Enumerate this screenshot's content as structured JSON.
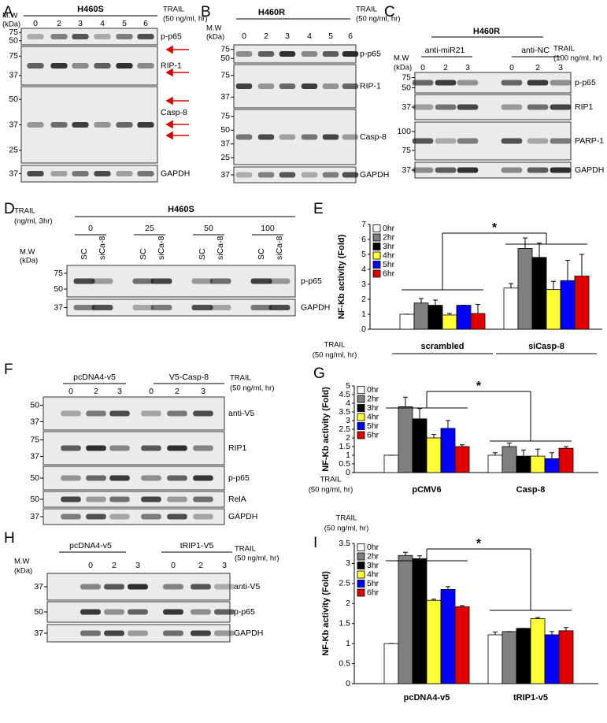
{
  "blots": [
    {
      "panel": "A",
      "title": "H460S",
      "treatment": [
        "TRAIL",
        "(50 ng/ml, hr)"
      ],
      "mw_header": [
        "M.W",
        "(kDa)"
      ],
      "lanes": [
        "0",
        "2",
        "3",
        "4",
        "5",
        "6"
      ],
      "rows": [
        {
          "label": "p-p65",
          "markers": [
            "75",
            "50"
          ]
        },
        {
          "label": "RIP-1",
          "markers": [
            "75",
            "37"
          ]
        },
        {
          "label": "Casp-8",
          "markers": [
            "50",
            "37",
            "25"
          ]
        },
        {
          "label": "GAPDH",
          "markers": [
            "37"
          ]
        }
      ]
    },
    {
      "panel": "B",
      "title": "H460R",
      "treatment": [
        "TRAIL",
        "(50 ng/ml, hr)"
      ],
      "mw_header": [
        "M.W",
        "(kDa)"
      ],
      "lanes": [
        "0",
        "2",
        "3",
        "4",
        "5",
        "6"
      ],
      "rows": [
        {
          "label": "p-p65",
          "markers": [
            "75",
            "50"
          ]
        },
        {
          "label": "RIP-1",
          "markers": [
            "75",
            "37"
          ]
        },
        {
          "label": "Casp-8",
          "markers": [
            "75",
            "50",
            "37",
            "25"
          ]
        },
        {
          "label": "GAPDH",
          "markers": [
            "37"
          ]
        }
      ]
    },
    {
      "panel": "C",
      "title": "H460R",
      "groups": [
        "anti-miR21",
        "anti-NC"
      ],
      "treatment": [
        "TRAIL",
        "(100 ng/ml, hr)"
      ],
      "mw_header": [
        "M.W",
        "(kDa)"
      ],
      "lanes": [
        "0",
        "2",
        "3",
        "0",
        "2",
        "3"
      ],
      "rows": [
        {
          "label": "p-p65",
          "markers": [
            "75",
            "50"
          ]
        },
        {
          "label": "RIP1",
          "markers": [
            "37"
          ]
        },
        {
          "label": "PARP-1",
          "markers": [
            "100",
            "75"
          ]
        },
        {
          "label": "GAPDH",
          "markers": [
            "37"
          ]
        }
      ]
    },
    {
      "panel": "D",
      "title": "H460S",
      "groups": [
        "0",
        "25",
        "50",
        "100"
      ],
      "treatment": [
        "TRAIL",
        "(ng/ml, 3hr)"
      ],
      "mw_header": [
        "M.W",
        "(kDa)"
      ],
      "lanes": [
        "SC",
        "siCa-8",
        "SC",
        "siCa-8",
        "SC",
        "siCa-8",
        "SC",
        "siCa-8"
      ],
      "rows": [
        {
          "label": "p-p65",
          "markers": [
            "75",
            "50"
          ]
        },
        {
          "label": "GAPDH",
          "markers": [
            "37"
          ]
        }
      ]
    },
    {
      "panel": "F",
      "groups": [
        "pcDNA4-v5",
        "V5-Casp-8"
      ],
      "treatment": [
        "TRAIL",
        "(50 ng/ml, hr)"
      ],
      "lanes": [
        "0",
        "2",
        "3",
        "0",
        "2",
        "3"
      ],
      "rows": [
        {
          "label": "anti-V5",
          "markers": [
            "50",
            "37"
          ]
        },
        {
          "label": "RIP1",
          "markers": [
            "75",
            "37"
          ]
        },
        {
          "label": "p-p65",
          "markers": [
            "50"
          ]
        },
        {
          "label": "RelA",
          "markers": [
            "50"
          ]
        },
        {
          "label": "GAPDH",
          "markers": [
            "37"
          ]
        }
      ]
    },
    {
      "panel": "H",
      "groups": [
        "pcDNA4-v5",
        "tRIP1-V5"
      ],
      "treatment": [
        "TRAIL",
        "(50 ng/ml, hr)"
      ],
      "mw_header": [
        "M.W",
        "(kDa)"
      ],
      "lanes": [
        "0",
        "2",
        "3",
        "0",
        "2",
        "3"
      ],
      "rows": [
        {
          "label": "anti-V5",
          "markers": [
            "37"
          ]
        },
        {
          "label": "p-p65",
          "markers": [
            "50"
          ]
        },
        {
          "label": "GAPDH",
          "markers": [
            "37"
          ]
        }
      ]
    }
  ],
  "extra_label": [
    "TRAIL",
    "(50 ng/ml, hr)"
  ],
  "chart_data": [
    {
      "type": "bar",
      "panel": "E",
      "ylabel": "NF-Kb activity (Fold)",
      "xlabel": [
        "TRAIL",
        "(50 ng/ml, hr)"
      ],
      "annotation": "*",
      "legend": "upper left",
      "categories": [
        "scrambled",
        "siCasp-8"
      ],
      "ylim": [
        0,
        7
      ],
      "yticks": [
        0,
        1,
        2,
        3,
        4,
        5,
        6,
        7
      ],
      "series": [
        {
          "name": "0hr",
          "color": "#ffffff",
          "values": [
            1,
            2.75
          ],
          "errors": [
            0,
            0.3
          ]
        },
        {
          "name": "2hr",
          "color": "#808080",
          "values": [
            1.75,
            5.4
          ],
          "errors": [
            0.3,
            0.7
          ]
        },
        {
          "name": "3hr",
          "color": "#000000",
          "values": [
            1.6,
            4.8
          ],
          "errors": [
            0.35,
            0.95
          ]
        },
        {
          "name": "4hr",
          "color": "#ffff33",
          "values": [
            0.95,
            2.65
          ],
          "errors": [
            0.1,
            0.55
          ]
        },
        {
          "name": "5hr",
          "color": "#0000ff",
          "values": [
            1.6,
            3.25
          ],
          "errors": [
            0,
            1.35
          ]
        },
        {
          "name": "6hr",
          "color": "#e00000",
          "values": [
            1.05,
            3.55
          ],
          "errors": [
            0.6,
            1.45
          ]
        }
      ]
    },
    {
      "type": "bar",
      "panel": "G",
      "ylabel": "NF-Kb activity (Fold)",
      "xlabel": [
        "TRAIL",
        "(50 ng/ml, hr)"
      ],
      "annotation": "*",
      "legend": "upper left",
      "categories": [
        "pCMV6",
        "Casp-8"
      ],
      "ylim": [
        0,
        5
      ],
      "yticks": [
        0,
        0.5,
        1,
        1.5,
        2,
        2.5,
        3,
        3.5,
        4,
        4.5,
        5
      ],
      "series": [
        {
          "name": "0hr",
          "color": "#ffffff",
          "values": [
            1,
            1
          ],
          "errors": [
            0,
            0.15
          ]
        },
        {
          "name": "2hr",
          "color": "#808080",
          "values": [
            3.8,
            1.5
          ],
          "errors": [
            0.55,
            0.2
          ]
        },
        {
          "name": "3hr",
          "color": "#000000",
          "values": [
            3.1,
            0.95
          ],
          "errors": [
            0.6,
            0.35
          ]
        },
        {
          "name": "4hr",
          "color": "#ffff33",
          "values": [
            2,
            0.95
          ],
          "errors": [
            0.2,
            0.4
          ]
        },
        {
          "name": "5hr",
          "color": "#0000ff",
          "values": [
            2.55,
            0.8
          ],
          "errors": [
            0.45,
            0.35
          ]
        },
        {
          "name": "6hr",
          "color": "#e00000",
          "values": [
            1.5,
            1.4
          ],
          "errors": [
            0.1,
            0.1
          ]
        }
      ]
    },
    {
      "type": "bar",
      "panel": "I",
      "ylabel": "NF-Kb activity (Fold)",
      "annotation": "*",
      "legend": "upper left",
      "categories": [
        "pcDNA4-v5",
        "tRIP1-v5"
      ],
      "ylim": [
        0,
        3.5
      ],
      "yticks": [
        0,
        0.5,
        1,
        1.5,
        2,
        2.5,
        3,
        3.5
      ],
      "series": [
        {
          "name": "0hr",
          "color": "#ffffff",
          "values": [
            1,
            1.22
          ],
          "errors": [
            0,
            0.07
          ]
        },
        {
          "name": "2hr",
          "color": "#808080",
          "values": [
            3.2,
            1.3
          ],
          "errors": [
            0.08,
            0
          ]
        },
        {
          "name": "3hr",
          "color": "#000000",
          "values": [
            3.12,
            1.38
          ],
          "errors": [
            0.07,
            0
          ]
        },
        {
          "name": "4hr",
          "color": "#ffff33",
          "values": [
            2.08,
            1.62
          ],
          "errors": [
            0.03,
            0.03
          ]
        },
        {
          "name": "5hr",
          "color": "#0000ff",
          "values": [
            2.35,
            1.22
          ],
          "errors": [
            0.07,
            0.08
          ]
        },
        {
          "name": "6hr",
          "color": "#e00000",
          "values": [
            1.92,
            1.32
          ],
          "errors": [
            0.03,
            0.08
          ]
        }
      ]
    }
  ]
}
